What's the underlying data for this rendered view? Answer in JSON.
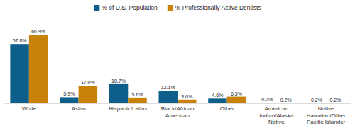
{
  "chart_data": {
    "type": "bar",
    "categories": [
      "White",
      "Asian",
      "Hispanic/Latinx",
      "Black/African\nAmerican",
      "Other",
      "American\nIndian/Alaska\nNative",
      "Native\nHawaiian/Other\nPacific Islander"
    ],
    "series": [
      {
        "name": "% of U.S. Population",
        "color": "#0d5f8a",
        "values": [
          57.8,
          5.9,
          18.7,
          12.1,
          4.6,
          0.7,
          0.2
        ],
        "value_labels": [
          "57.8%",
          "5.9%",
          "18.7%",
          "12.1%",
          "4.6%",
          "0.7%",
          "0.2%"
        ]
      },
      {
        "name": "% Professionally Active Dentists",
        "color": "#c8820a",
        "values": [
          66.9,
          17.0,
          5.6,
          3.6,
          6.5,
          0.2,
          0.2
        ],
        "value_labels": [
          "66.9%",
          "17.0%",
          "5.6%",
          "3.6%",
          "6.5%",
          "0.2%",
          "0.2%"
        ]
      }
    ],
    "ylim": [
      0,
      80
    ],
    "grid": false,
    "legend": "top",
    "data_labels": true,
    "tick_labels": "x"
  }
}
